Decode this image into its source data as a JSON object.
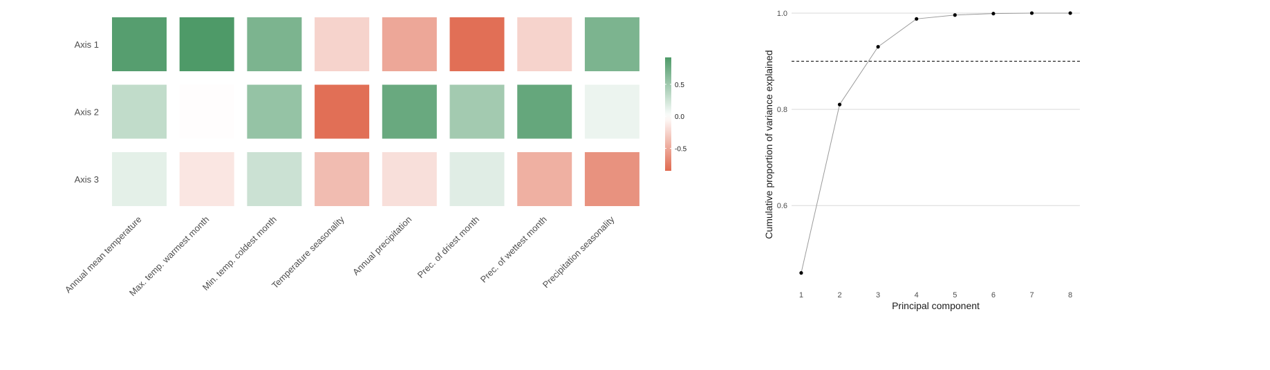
{
  "chart_data": [
    {
      "type": "heatmap",
      "title": "",
      "rows": [
        "Axis 1",
        "Axis 2",
        "Axis 3"
      ],
      "columns": [
        "Annual mean temperature",
        "Max. temp. warmest month",
        "Min. temp. coldest month",
        "Temperature seasonality",
        "Annual precipitation",
        "Prec. of driest month",
        "Prec. of wettest month",
        "Precipitation seasonality"
      ],
      "values": [
        [
          0.88,
          0.95,
          0.68,
          -0.25,
          -0.5,
          -0.82,
          -0.25,
          0.68
        ],
        [
          0.32,
          -0.01,
          0.55,
          -0.82,
          0.78,
          0.48,
          0.8,
          0.1
        ],
        [
          0.14,
          -0.14,
          0.27,
          -0.38,
          -0.18,
          0.16,
          -0.45,
          -0.62
        ]
      ],
      "color_min": -0.85,
      "color_max": 0.92,
      "low_color": "#e06a50",
      "mid_color": "#ffffff",
      "high_color": "#4e9a68",
      "legend": {
        "ticks": [
          0.5,
          0.0,
          -0.5
        ],
        "tick_labels": [
          "0.5",
          "0.0",
          "-0.5"
        ],
        "placement": "right"
      }
    },
    {
      "type": "line",
      "title": "",
      "xlabel": "Principal component",
      "ylabel": "Cumulative proportion of variance explained",
      "x": [
        1,
        2,
        3,
        4,
        5,
        6,
        7,
        8
      ],
      "y": [
        0.46,
        0.81,
        0.93,
        0.988,
        0.996,
        0.999,
        1.0,
        1.0
      ],
      "xlim": [
        0.75,
        8.25
      ],
      "ylim": [
        0.435,
        1.01
      ],
      "xticks": [
        1,
        2,
        3,
        4,
        5,
        6,
        7,
        8
      ],
      "xtick_labels": [
        "1",
        "2",
        "3",
        "4",
        "5",
        "6",
        "7",
        "8"
      ],
      "yticks": [
        0.6,
        0.8,
        1.0
      ],
      "ytick_labels": [
        "0.6",
        "0.8",
        "1.0"
      ],
      "hline": 0.9,
      "grid": "horizontal"
    }
  ]
}
